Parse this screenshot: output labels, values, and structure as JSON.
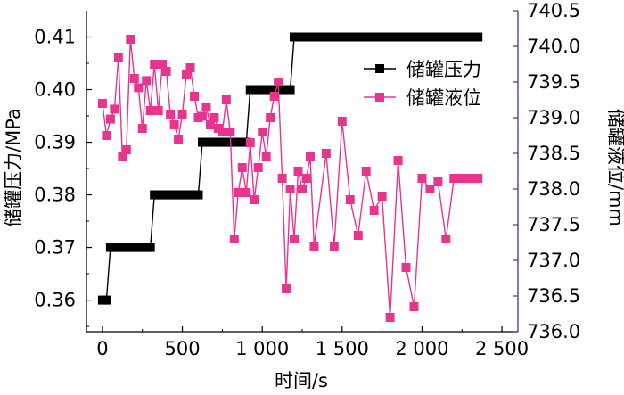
{
  "chart_data": {
    "type": "line",
    "xlabel": "时间/s",
    "ylabel_left": "储罐压力/MPa",
    "ylabel_right": "储罐液位/mm",
    "xlim": [
      -100,
      2600
    ],
    "ylim_left": [
      0.354,
      0.415
    ],
    "ylim_right": [
      736.0,
      740.5
    ],
    "x_ticks": [
      0,
      500,
      1000,
      1500,
      2000,
      2500
    ],
    "x_tick_labels": [
      "0",
      "500",
      "1 000",
      "1 500",
      "2 000",
      "2 500"
    ],
    "y_left_ticks": [
      0.36,
      0.37,
      0.38,
      0.39,
      0.4,
      0.41
    ],
    "y_left_tick_labels": [
      "0.36",
      "0.37",
      "0.38",
      "0.39",
      "0.40",
      "0.41"
    ],
    "y_right_ticks": [
      736.0,
      736.5,
      737.0,
      737.5,
      738.0,
      738.5,
      739.0,
      739.5,
      740.0,
      740.5
    ],
    "y_right_tick_labels": [
      "736.0",
      "736.5",
      "737.0",
      "737.5",
      "738.0",
      "738.5",
      "739.0",
      "739.5",
      "740.0",
      "740.5"
    ],
    "legend_position": "top-right",
    "series": [
      {
        "name": "储罐压力",
        "axis": "left",
        "color": "#000000",
        "x": [
          0,
          25,
          50,
          75,
          100,
          125,
          150,
          175,
          200,
          225,
          250,
          275,
          300,
          325,
          350,
          375,
          400,
          425,
          450,
          475,
          500,
          525,
          550,
          575,
          600,
          625,
          650,
          675,
          700,
          725,
          750,
          775,
          800,
          825,
          850,
          875,
          900,
          925,
          950,
          975,
          1000,
          1025,
          1050,
          1075,
          1100,
          1125,
          1150,
          1175,
          1200,
          1225,
          1250,
          1275,
          1300,
          1325,
          1350,
          1375,
          1400,
          1425,
          1450,
          1475,
          1500,
          1525,
          1550,
          1575,
          1600,
          1625,
          1650,
          1675,
          1700,
          1725,
          1750,
          1775,
          1800,
          1825,
          1850,
          1875,
          1900,
          1925,
          1950,
          1975,
          2000,
          2025,
          2050,
          2075,
          2100,
          2125,
          2150,
          2175,
          2200,
          2225,
          2250,
          2275,
          2300,
          2325,
          2350
        ],
        "y": [
          0.36,
          0.36,
          0.37,
          0.37,
          0.37,
          0.37,
          0.37,
          0.37,
          0.37,
          0.37,
          0.37,
          0.37,
          0.37,
          0.38,
          0.38,
          0.38,
          0.38,
          0.38,
          0.38,
          0.38,
          0.38,
          0.38,
          0.38,
          0.38,
          0.38,
          0.39,
          0.39,
          0.39,
          0.39,
          0.39,
          0.39,
          0.39,
          0.39,
          0.39,
          0.39,
          0.39,
          0.39,
          0.4,
          0.4,
          0.4,
          0.4,
          0.4,
          0.4,
          0.4,
          0.4,
          0.4,
          0.4,
          0.4,
          0.41,
          0.41,
          0.41,
          0.41,
          0.41,
          0.41,
          0.41,
          0.41,
          0.41,
          0.41,
          0.41,
          0.41,
          0.41,
          0.41,
          0.41,
          0.41,
          0.41,
          0.41,
          0.41,
          0.41,
          0.41,
          0.41,
          0.41,
          0.41,
          0.41,
          0.41,
          0.41,
          0.41,
          0.41,
          0.41,
          0.41,
          0.41,
          0.41,
          0.41,
          0.41,
          0.41,
          0.41,
          0.41,
          0.41,
          0.41,
          0.41,
          0.41,
          0.41,
          0.41,
          0.41,
          0.41,
          0.41
        ]
      },
      {
        "name": "储罐液位",
        "axis": "right",
        "color": "#e8348f",
        "x": [
          0,
          25,
          50,
          75,
          100,
          125,
          150,
          175,
          200,
          225,
          250,
          275,
          300,
          325,
          350,
          375,
          400,
          425,
          450,
          475,
          500,
          525,
          550,
          575,
          600,
          625,
          650,
          675,
          700,
          725,
          750,
          775,
          800,
          825,
          850,
          875,
          900,
          925,
          950,
          975,
          1000,
          1025,
          1050,
          1075,
          1100,
          1125,
          1150,
          1175,
          1200,
          1225,
          1250,
          1275,
          1300,
          1325,
          1400,
          1450,
          1500,
          1550,
          1600,
          1650,
          1700,
          1750,
          1800,
          1850,
          1900,
          1950,
          2000,
          2050,
          2100,
          2150,
          2200,
          2250,
          2300,
          2350
        ],
        "y": [
          739.2,
          738.75,
          738.98,
          739.12,
          739.85,
          738.45,
          738.55,
          740.1,
          739.55,
          739.42,
          738.85,
          739.52,
          739.1,
          739.75,
          739.1,
          739.75,
          739.65,
          739.05,
          738.9,
          738.7,
          739.05,
          739.6,
          739.7,
          739.3,
          739.0,
          739.02,
          739.15,
          738.9,
          739.0,
          738.85,
          738.8,
          739.25,
          738.8,
          737.3,
          737.95,
          738.3,
          737.95,
          738.65,
          737.85,
          738.3,
          738.8,
          738.45,
          739.0,
          739.3,
          739.5,
          738.15,
          736.6,
          738.0,
          737.3,
          738.25,
          738.0,
          738.15,
          738.45,
          737.2,
          738.5,
          737.2,
          738.95,
          737.85,
          737.35,
          738.25,
          737.7,
          737.9,
          736.2,
          738.4,
          736.9,
          736.35,
          738.15,
          738.0,
          738.1,
          737.3,
          738.15,
          738.15,
          738.15,
          738.15
        ]
      }
    ]
  }
}
